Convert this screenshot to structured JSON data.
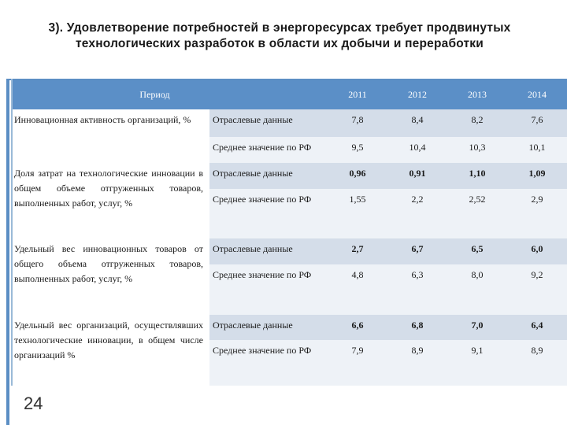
{
  "title": "3). Удовлетворение потребностей в энергоресурсах требует продвинутых технологических разработок в области их добычи и переработки",
  "table": {
    "period_label": "Период",
    "years": [
      "2011",
      "2012",
      "2013",
      "2014"
    ],
    "groups": [
      {
        "indicator": "Инновационная активность организаций, %",
        "rows": [
          {
            "source": "Отраслевые данные",
            "values": [
              "7,8",
              "8,4",
              "8,2",
              "7,6"
            ]
          },
          {
            "source": "Среднее значение по РФ",
            "values": [
              "9,5",
              "10,4",
              "10,3",
              "10,1"
            ]
          }
        ]
      },
      {
        "indicator": "Доля затрат на технологические инновации в общем объеме отгруженных товаров, выполненных работ, услуг, %",
        "rows": [
          {
            "source": "Отраслевые данные",
            "values": [
              "0,96",
              "0,91",
              "1,10",
              "1,09"
            ]
          },
          {
            "source": "Среднее значение по РФ",
            "values": [
              "1,55",
              "2,2",
              "2,52",
              "2,9"
            ]
          }
        ]
      },
      {
        "indicator": "Удельный вес инновационных товаров от общего объема отгруженных товаров, выполненных работ, услуг, %",
        "rows": [
          {
            "source": "Отраслевые данные",
            "values": [
              "2,7",
              "6,7",
              "6,5",
              "6,0"
            ]
          },
          {
            "source": "Среднее значение по РФ",
            "values": [
              "4,8",
              "6,3",
              "8,0",
              "9,2"
            ]
          }
        ]
      },
      {
        "indicator": "Удельный вес организаций, осуществлявших технологические инновации, в общем числе организаций %",
        "rows": [
          {
            "source": "Отраслевые данные",
            "values": [
              "6,6",
              "6,8",
              "7,0",
              "6,4"
            ]
          },
          {
            "source": "Среднее значение по РФ",
            "values": [
              "7,9",
              "8,9",
              "9,1",
              "8,9"
            ]
          }
        ]
      }
    ]
  },
  "page_number": "24"
}
